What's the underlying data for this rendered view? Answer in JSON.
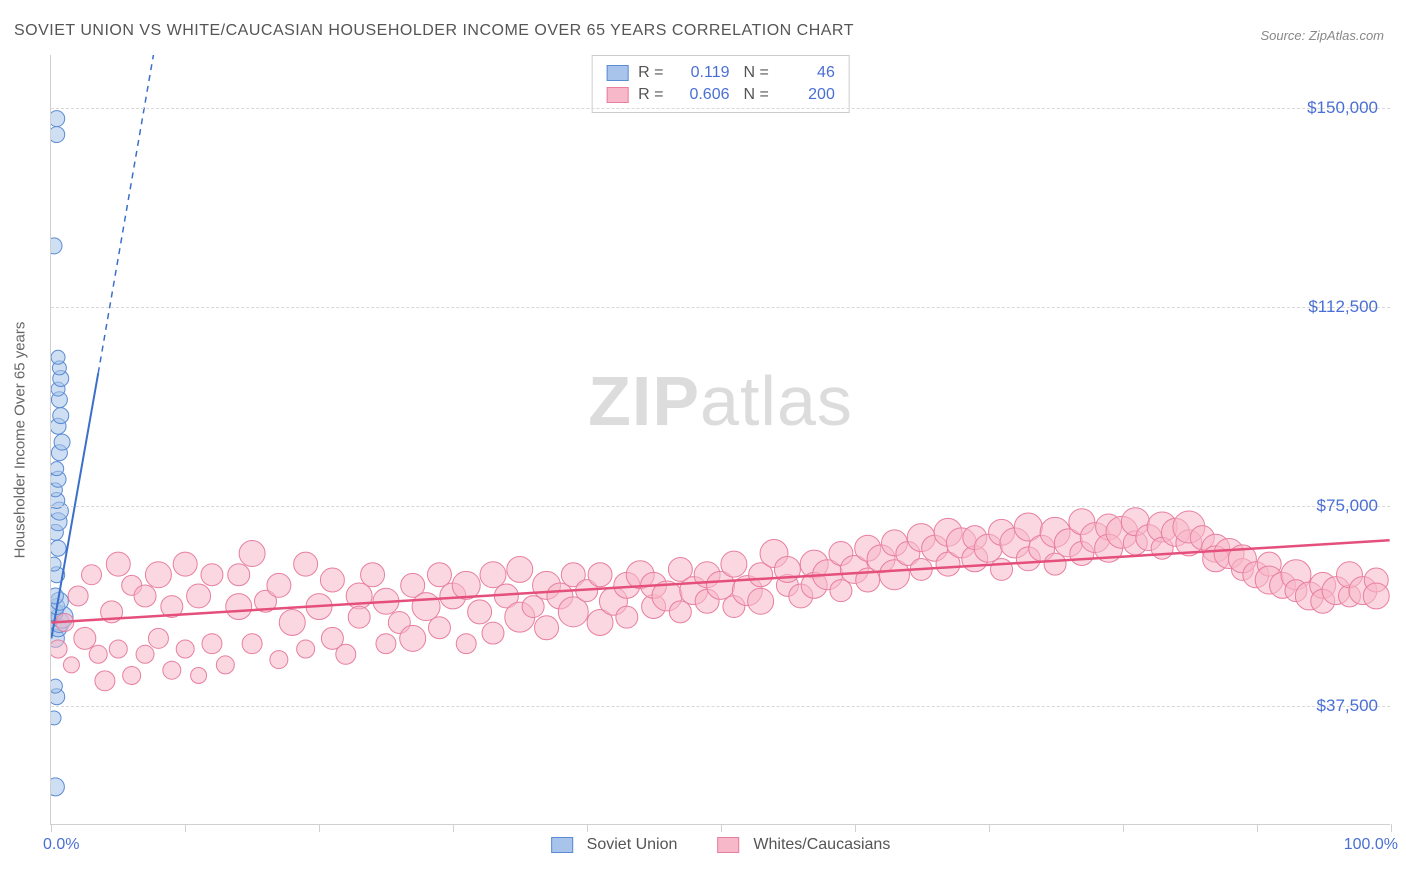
{
  "title": "SOVIET UNION VS WHITE/CAUCASIAN HOUSEHOLDER INCOME OVER 65 YEARS CORRELATION CHART",
  "source": "Source: ZipAtlas.com",
  "y_axis_label": "Householder Income Over 65 years",
  "watermark_bold": "ZIP",
  "watermark_light": "atlas",
  "chart": {
    "type": "scatter",
    "background_color": "#ffffff",
    "grid_color": "#d8d8d8",
    "axis_color": "#d0d0d0",
    "label_color": "#4a6fd4",
    "xlim": [
      0,
      100
    ],
    "ylim": [
      15000,
      160000
    ],
    "x_min_label": "0.0%",
    "x_max_label": "100.0%",
    "x_ticks": [
      0,
      10,
      20,
      30,
      40,
      50,
      60,
      70,
      80,
      90,
      100
    ],
    "y_gridlines": [
      {
        "value": 37500,
        "label": "$37,500"
      },
      {
        "value": 75000,
        "label": "$75,000"
      },
      {
        "value": 112500,
        "label": "$112,500"
      },
      {
        "value": 150000,
        "label": "$150,000"
      }
    ],
    "title_fontsize": 16,
    "label_fontsize": 15,
    "tick_fontsize": 17
  },
  "series": [
    {
      "key": "soviet",
      "name": "Soviet Union",
      "fill": "#a8c4ea",
      "stroke": "#5b8bd4",
      "fill_opacity": 0.55,
      "R": "0.119",
      "N": "46",
      "marker_radius": 8,
      "trend": {
        "x1": 0,
        "y1": 50000,
        "x2": 3.5,
        "y2": 100000,
        "dash_x2": 9,
        "dash_y2": 180000,
        "color": "#3b6fc9",
        "width": 2
      },
      "points": [
        {
          "x": 0.3,
          "y": 22000,
          "r": 9
        },
        {
          "x": 0.2,
          "y": 35000,
          "r": 7
        },
        {
          "x": 0.4,
          "y": 39000,
          "r": 8
        },
        {
          "x": 0.3,
          "y": 41000,
          "r": 7
        },
        {
          "x": 0.3,
          "y": 50000,
          "r": 9
        },
        {
          "x": 0.5,
          "y": 52000,
          "r": 9
        },
        {
          "x": 0.6,
          "y": 53000,
          "r": 10
        },
        {
          "x": 0.8,
          "y": 54000,
          "r": 11
        },
        {
          "x": 0.2,
          "y": 55000,
          "r": 9
        },
        {
          "x": 0.4,
          "y": 56000,
          "r": 8
        },
        {
          "x": 0.6,
          "y": 57000,
          "r": 9
        },
        {
          "x": 0.3,
          "y": 58000,
          "r": 8
        },
        {
          "x": 0.4,
          "y": 62000,
          "r": 8
        },
        {
          "x": 0.2,
          "y": 64000,
          "r": 7
        },
        {
          "x": 0.5,
          "y": 67000,
          "r": 8
        },
        {
          "x": 0.3,
          "y": 70000,
          "r": 8
        },
        {
          "x": 0.5,
          "y": 72000,
          "r": 9
        },
        {
          "x": 0.6,
          "y": 74000,
          "r": 9
        },
        {
          "x": 0.4,
          "y": 76000,
          "r": 8
        },
        {
          "x": 0.3,
          "y": 78000,
          "r": 7
        },
        {
          "x": 0.5,
          "y": 80000,
          "r": 8
        },
        {
          "x": 0.4,
          "y": 82000,
          "r": 7
        },
        {
          "x": 0.6,
          "y": 85000,
          "r": 8
        },
        {
          "x": 0.8,
          "y": 87000,
          "r": 8
        },
        {
          "x": 0.5,
          "y": 90000,
          "r": 8
        },
        {
          "x": 0.7,
          "y": 92000,
          "r": 8
        },
        {
          "x": 0.6,
          "y": 95000,
          "r": 8
        },
        {
          "x": 0.5,
          "y": 97000,
          "r": 7
        },
        {
          "x": 0.7,
          "y": 99000,
          "r": 8
        },
        {
          "x": 0.6,
          "y": 101000,
          "r": 7
        },
        {
          "x": 0.5,
          "y": 103000,
          "r": 7
        },
        {
          "x": 0.2,
          "y": 124000,
          "r": 8
        },
        {
          "x": 0.4,
          "y": 145000,
          "r": 8
        },
        {
          "x": 0.4,
          "y": 148000,
          "r": 8
        }
      ]
    },
    {
      "key": "white",
      "name": "Whites/Caucasians",
      "fill": "#f7b8c9",
      "stroke": "#e87fa0",
      "fill_opacity": 0.55,
      "R": "0.606",
      "N": "200",
      "marker_radius": 11,
      "trend": {
        "x1": 0,
        "y1": 53000,
        "x2": 100,
        "y2": 68500,
        "color": "#e54f7b",
        "width": 2.5
      },
      "points": [
        {
          "x": 0.5,
          "y": 48000,
          "r": 9
        },
        {
          "x": 1,
          "y": 53000,
          "r": 9
        },
        {
          "x": 1.5,
          "y": 45000,
          "r": 8
        },
        {
          "x": 2,
          "y": 58000,
          "r": 10
        },
        {
          "x": 2.5,
          "y": 50000,
          "r": 11
        },
        {
          "x": 3,
          "y": 62000,
          "r": 10
        },
        {
          "x": 3.5,
          "y": 47000,
          "r": 9
        },
        {
          "x": 4,
          "y": 42000,
          "r": 10
        },
        {
          "x": 4.5,
          "y": 55000,
          "r": 11
        },
        {
          "x": 5,
          "y": 64000,
          "r": 12
        },
        {
          "x": 5,
          "y": 48000,
          "r": 9
        },
        {
          "x": 6,
          "y": 60000,
          "r": 10
        },
        {
          "x": 6,
          "y": 43000,
          "r": 9
        },
        {
          "x": 7,
          "y": 58000,
          "r": 11
        },
        {
          "x": 7,
          "y": 47000,
          "r": 9
        },
        {
          "x": 8,
          "y": 62000,
          "r": 13
        },
        {
          "x": 8,
          "y": 50000,
          "r": 10
        },
        {
          "x": 9,
          "y": 44000,
          "r": 9
        },
        {
          "x": 9,
          "y": 56000,
          "r": 11
        },
        {
          "x": 10,
          "y": 64000,
          "r": 12
        },
        {
          "x": 10,
          "y": 48000,
          "r": 9
        },
        {
          "x": 11,
          "y": 43000,
          "r": 8
        },
        {
          "x": 11,
          "y": 58000,
          "r": 12
        },
        {
          "x": 12,
          "y": 62000,
          "r": 11
        },
        {
          "x": 12,
          "y": 49000,
          "r": 10
        },
        {
          "x": 13,
          "y": 45000,
          "r": 9
        },
        {
          "x": 14,
          "y": 56000,
          "r": 13
        },
        {
          "x": 14,
          "y": 62000,
          "r": 11
        },
        {
          "x": 15,
          "y": 66000,
          "r": 13
        },
        {
          "x": 15,
          "y": 49000,
          "r": 10
        },
        {
          "x": 16,
          "y": 57000,
          "r": 11
        },
        {
          "x": 17,
          "y": 46000,
          "r": 9
        },
        {
          "x": 17,
          "y": 60000,
          "r": 12
        },
        {
          "x": 18,
          "y": 53000,
          "r": 13
        },
        {
          "x": 19,
          "y": 64000,
          "r": 12
        },
        {
          "x": 19,
          "y": 48000,
          "r": 9
        },
        {
          "x": 20,
          "y": 56000,
          "r": 13
        },
        {
          "x": 21,
          "y": 50000,
          "r": 11
        },
        {
          "x": 21,
          "y": 61000,
          "r": 12
        },
        {
          "x": 22,
          "y": 47000,
          "r": 10
        },
        {
          "x": 23,
          "y": 58000,
          "r": 13
        },
        {
          "x": 23,
          "y": 54000,
          "r": 11
        },
        {
          "x": 24,
          "y": 62000,
          "r": 12
        },
        {
          "x": 25,
          "y": 49000,
          "r": 10
        },
        {
          "x": 25,
          "y": 57000,
          "r": 13
        },
        {
          "x": 26,
          "y": 53000,
          "r": 11
        },
        {
          "x": 27,
          "y": 60000,
          "r": 12
        },
        {
          "x": 27,
          "y": 50000,
          "r": 13
        },
        {
          "x": 28,
          "y": 56000,
          "r": 14
        },
        {
          "x": 29,
          "y": 62000,
          "r": 12
        },
        {
          "x": 29,
          "y": 52000,
          "r": 11
        },
        {
          "x": 30,
          "y": 58000,
          "r": 13
        },
        {
          "x": 31,
          "y": 49000,
          "r": 10
        },
        {
          "x": 31,
          "y": 60000,
          "r": 14
        },
        {
          "x": 32,
          "y": 55000,
          "r": 12
        },
        {
          "x": 33,
          "y": 62000,
          "r": 13
        },
        {
          "x": 33,
          "y": 51000,
          "r": 11
        },
        {
          "x": 34,
          "y": 58000,
          "r": 12
        },
        {
          "x": 35,
          "y": 54000,
          "r": 15
        },
        {
          "x": 35,
          "y": 63000,
          "r": 13
        },
        {
          "x": 36,
          "y": 56000,
          "r": 11
        },
        {
          "x": 37,
          "y": 60000,
          "r": 14
        },
        {
          "x": 37,
          "y": 52000,
          "r": 12
        },
        {
          "x": 38,
          "y": 58000,
          "r": 13
        },
        {
          "x": 39,
          "y": 62000,
          "r": 12
        },
        {
          "x": 39,
          "y": 55000,
          "r": 15
        },
        {
          "x": 40,
          "y": 59000,
          "r": 11
        },
        {
          "x": 41,
          "y": 53000,
          "r": 13
        },
        {
          "x": 41,
          "y": 62000,
          "r": 12
        },
        {
          "x": 42,
          "y": 57000,
          "r": 14
        },
        {
          "x": 43,
          "y": 60000,
          "r": 13
        },
        {
          "x": 43,
          "y": 54000,
          "r": 11
        },
        {
          "x": 44,
          "y": 62000,
          "r": 14
        },
        {
          "x": 45,
          "y": 56000,
          "r": 12
        },
        {
          "x": 45,
          "y": 60000,
          "r": 13
        },
        {
          "x": 46,
          "y": 58000,
          "r": 15
        },
        {
          "x": 47,
          "y": 63000,
          "r": 12
        },
        {
          "x": 47,
          "y": 55000,
          "r": 11
        },
        {
          "x": 48,
          "y": 59000,
          "r": 14
        },
        {
          "x": 49,
          "y": 62000,
          "r": 13
        },
        {
          "x": 49,
          "y": 57000,
          "r": 12
        },
        {
          "x": 50,
          "y": 60000,
          "r": 14
        },
        {
          "x": 51,
          "y": 56000,
          "r": 11
        },
        {
          "x": 51,
          "y": 64000,
          "r": 13
        },
        {
          "x": 52,
          "y": 59000,
          "r": 15
        },
        {
          "x": 53,
          "y": 62000,
          "r": 12
        },
        {
          "x": 53,
          "y": 57000,
          "r": 13
        },
        {
          "x": 54,
          "y": 66000,
          "r": 14
        },
        {
          "x": 55,
          "y": 60000,
          "r": 11
        },
        {
          "x": 55,
          "y": 63000,
          "r": 13
        },
        {
          "x": 56,
          "y": 58000,
          "r": 12
        },
        {
          "x": 57,
          "y": 64000,
          "r": 14
        },
        {
          "x": 57,
          "y": 60000,
          "r": 13
        },
        {
          "x": 58,
          "y": 62000,
          "r": 15
        },
        {
          "x": 59,
          "y": 66000,
          "r": 12
        },
        {
          "x": 59,
          "y": 59000,
          "r": 11
        },
        {
          "x": 60,
          "y": 63000,
          "r": 14
        },
        {
          "x": 61,
          "y": 67000,
          "r": 13
        },
        {
          "x": 61,
          "y": 61000,
          "r": 12
        },
        {
          "x": 62,
          "y": 65000,
          "r": 14
        },
        {
          "x": 63,
          "y": 68000,
          "r": 13
        },
        {
          "x": 63,
          "y": 62000,
          "r": 15
        },
        {
          "x": 64,
          "y": 66000,
          "r": 12
        },
        {
          "x": 65,
          "y": 69000,
          "r": 14
        },
        {
          "x": 65,
          "y": 63000,
          "r": 11
        },
        {
          "x": 66,
          "y": 67000,
          "r": 13
        },
        {
          "x": 67,
          "y": 70000,
          "r": 14
        },
        {
          "x": 67,
          "y": 64000,
          "r": 12
        },
        {
          "x": 68,
          "y": 68000,
          "r": 15
        },
        {
          "x": 69,
          "y": 65000,
          "r": 13
        },
        {
          "x": 69,
          "y": 69000,
          "r": 12
        },
        {
          "x": 70,
          "y": 67000,
          "r": 14
        },
        {
          "x": 71,
          "y": 70000,
          "r": 13
        },
        {
          "x": 71,
          "y": 63000,
          "r": 11
        },
        {
          "x": 72,
          "y": 68000,
          "r": 15
        },
        {
          "x": 73,
          "y": 65000,
          "r": 12
        },
        {
          "x": 73,
          "y": 71000,
          "r": 14
        },
        {
          "x": 74,
          "y": 67000,
          "r": 13
        },
        {
          "x": 75,
          "y": 70000,
          "r": 15
        },
        {
          "x": 75,
          "y": 64000,
          "r": 11
        },
        {
          "x": 76,
          "y": 68000,
          "r": 14
        },
        {
          "x": 77,
          "y": 72000,
          "r": 13
        },
        {
          "x": 77,
          "y": 66000,
          "r": 12
        },
        {
          "x": 78,
          "y": 69000,
          "r": 15
        },
        {
          "x": 79,
          "y": 71000,
          "r": 13
        },
        {
          "x": 79,
          "y": 67000,
          "r": 14
        },
        {
          "x": 80,
          "y": 70000,
          "r": 16
        },
        {
          "x": 81,
          "y": 68000,
          "r": 12
        },
        {
          "x": 81,
          "y": 72000,
          "r": 14
        },
        {
          "x": 82,
          "y": 69000,
          "r": 13
        },
        {
          "x": 83,
          "y": 71000,
          "r": 15
        },
        {
          "x": 83,
          "y": 67000,
          "r": 11
        },
        {
          "x": 84,
          "y": 70000,
          "r": 14
        },
        {
          "x": 85,
          "y": 68000,
          "r": 13
        },
        {
          "x": 85,
          "y": 71000,
          "r": 16
        },
        {
          "x": 86,
          "y": 69000,
          "r": 12
        },
        {
          "x": 87,
          "y": 67000,
          "r": 14
        },
        {
          "x": 87,
          "y": 65000,
          "r": 13
        },
        {
          "x": 88,
          "y": 66000,
          "r": 15
        },
        {
          "x": 89,
          "y": 63000,
          "r": 11
        },
        {
          "x": 89,
          "y": 65000,
          "r": 14
        },
        {
          "x": 90,
          "y": 62000,
          "r": 13
        },
        {
          "x": 91,
          "y": 64000,
          "r": 12
        },
        {
          "x": 91,
          "y": 61000,
          "r": 14
        },
        {
          "x": 92,
          "y": 60000,
          "r": 13
        },
        {
          "x": 93,
          "y": 62000,
          "r": 15
        },
        {
          "x": 93,
          "y": 59000,
          "r": 11
        },
        {
          "x": 94,
          "y": 58000,
          "r": 14
        },
        {
          "x": 95,
          "y": 60000,
          "r": 13
        },
        {
          "x": 95,
          "y": 57000,
          "r": 12
        },
        {
          "x": 96,
          "y": 59000,
          "r": 14
        },
        {
          "x": 97,
          "y": 58000,
          "r": 11
        },
        {
          "x": 97,
          "y": 62000,
          "r": 13
        },
        {
          "x": 98,
          "y": 59000,
          "r": 14
        },
        {
          "x": 99,
          "y": 61000,
          "r": 12
        },
        {
          "x": 99,
          "y": 58000,
          "r": 13
        }
      ]
    }
  ],
  "legend_stats_labels": {
    "R": "R =",
    "N": "N ="
  }
}
